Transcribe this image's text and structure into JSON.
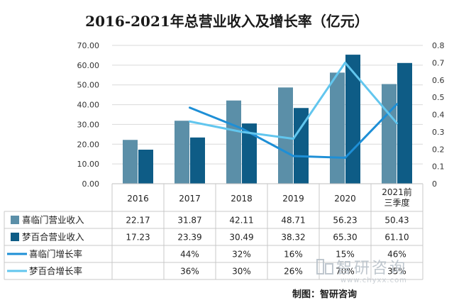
{
  "chart_data": {
    "type": "bar",
    "title": "2016-2021年总营业收入及增长率（亿元）",
    "categories": [
      "2016",
      "2017",
      "2018",
      "2019",
      "2020",
      "2021前三季度"
    ],
    "category_lines": [
      [
        "2016"
      ],
      [
        "2017"
      ],
      [
        "2018"
      ],
      [
        "2019"
      ],
      [
        "2020"
      ],
      [
        "2021前",
        "三季度"
      ]
    ],
    "ylim_left": [
      0,
      70
    ],
    "yticks_left": [
      "0.00",
      "10.00",
      "20.00",
      "30.00",
      "40.00",
      "50.00",
      "60.00",
      "70.00"
    ],
    "ylim_right": [
      0,
      0.8
    ],
    "yticks_right": [
      "0",
      "0.1",
      "0.2",
      "0.3",
      "0.4",
      "0.5",
      "0.6",
      "0.7",
      "0.8"
    ],
    "grid": true,
    "legend": "data-table-left",
    "series": [
      {
        "name": "喜临门营业收入",
        "kind": "bar",
        "axis": "left",
        "color": "#5b8fa8",
        "values": [
          22.17,
          31.87,
          42.11,
          48.71,
          56.23,
          50.43
        ],
        "labels": [
          "22.17",
          "31.87",
          "42.11",
          "48.71",
          "56.23",
          "50.43"
        ]
      },
      {
        "name": "梦百合营业收入",
        "kind": "bar",
        "axis": "left",
        "color": "#0e5c86",
        "values": [
          17.23,
          23.39,
          30.49,
          38.32,
          65.3,
          61.1
        ],
        "labels": [
          "17.23",
          "23.39",
          "30.49",
          "38.32",
          "65.30",
          "61.10"
        ]
      },
      {
        "name": "喜临门增长率",
        "kind": "line",
        "axis": "right",
        "color": "#1e8fd6",
        "values": [
          null,
          0.44,
          0.32,
          0.16,
          0.15,
          0.46
        ],
        "labels": [
          "",
          "44%",
          "32%",
          "16%",
          "15%",
          "46%"
        ]
      },
      {
        "name": "梦百合增长率",
        "kind": "line",
        "axis": "right",
        "color": "#62c6ee",
        "values": [
          null,
          0.36,
          0.3,
          0.26,
          0.7,
          0.35
        ],
        "labels": [
          "",
          "36%",
          "30%",
          "26%",
          "70%",
          "35%"
        ]
      }
    ]
  },
  "watermark": {
    "brand": "智研咨询",
    "url": "www.chyxx.com"
  },
  "source_note": "制图：智研咨询"
}
